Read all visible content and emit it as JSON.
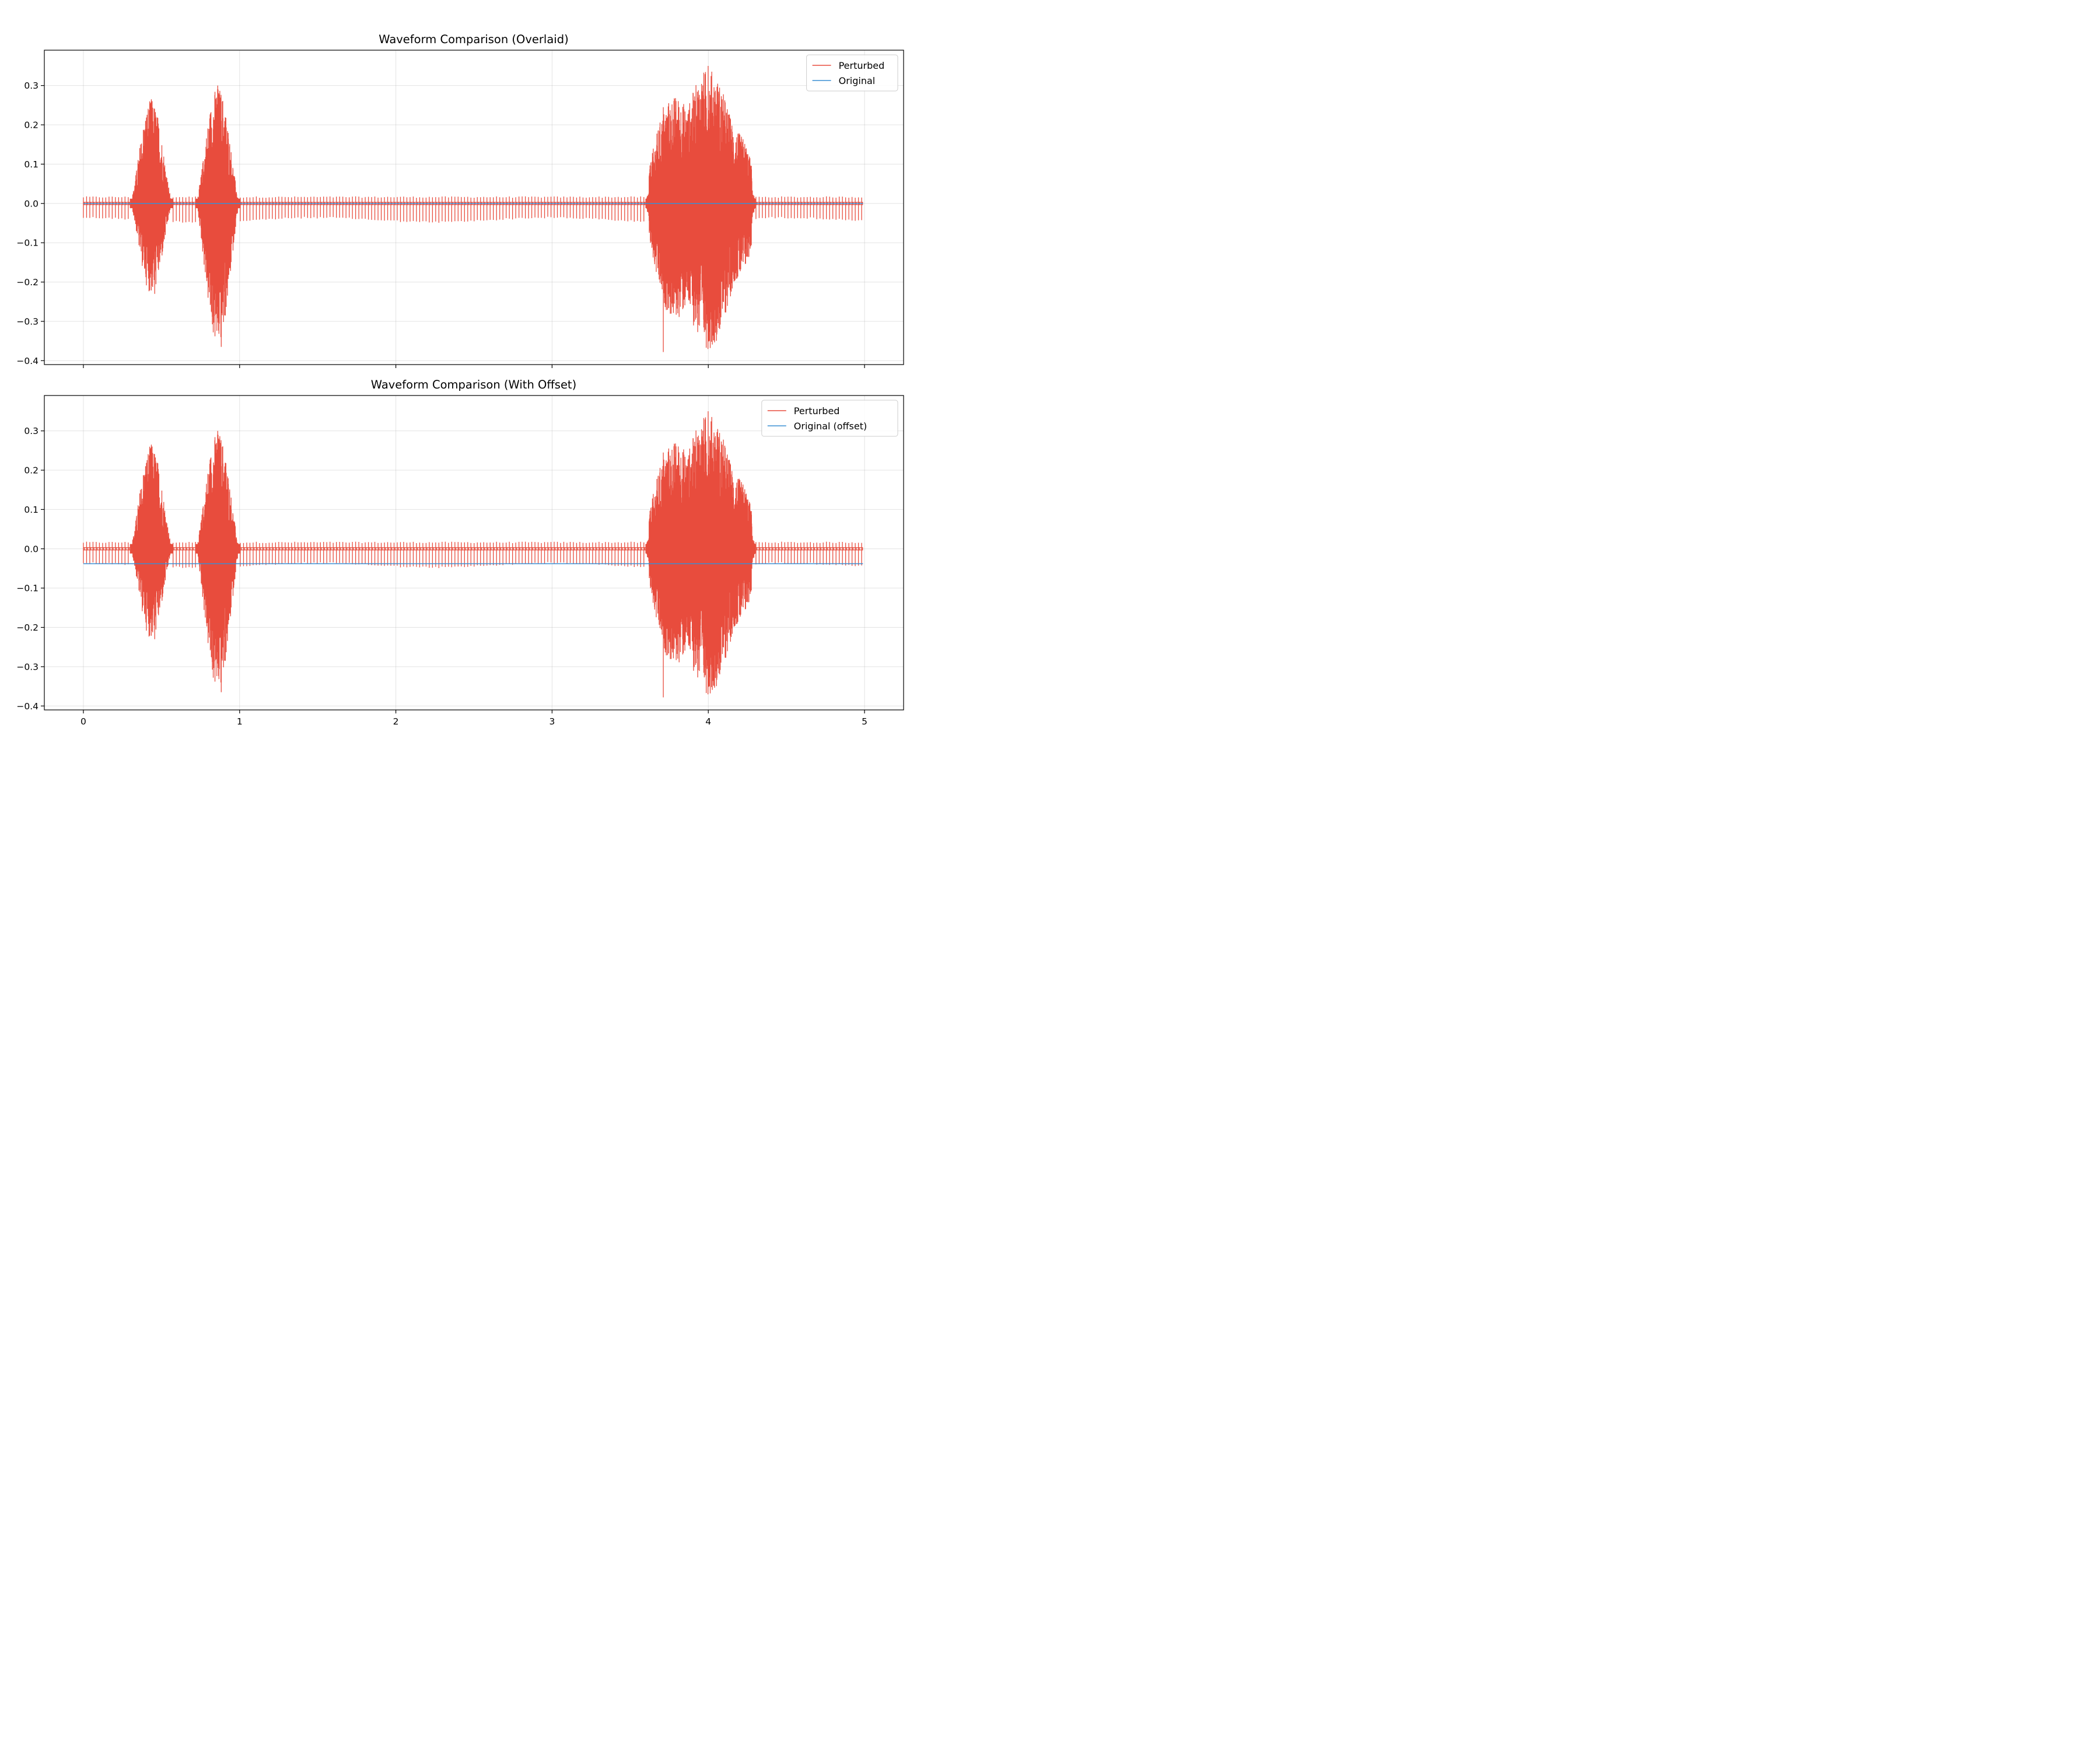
{
  "colors": {
    "perturbed": "#e84c3d",
    "original": "#3a8fd4"
  },
  "chart_data": [
    {
      "type": "line",
      "title": "Waveform Comparison (Overlaid)",
      "xlim": [
        -0.25,
        5.25
      ],
      "ylim": [
        -0.41,
        0.39
      ],
      "x_ticks": [
        0,
        1,
        2,
        3,
        4,
        5
      ],
      "x_tick_labels": [
        "",
        "",
        "",
        "",
        "",
        ""
      ],
      "y_ticks": [
        0.3,
        0.2,
        0.1,
        0.0,
        -0.1,
        -0.2,
        -0.3,
        -0.4
      ],
      "y_tick_labels": [
        "0.3",
        "0.2",
        "0.1",
        "0.0",
        "−0.1",
        "−0.2",
        "−0.3",
        "−0.4"
      ],
      "grid": true,
      "legend_position": "top-right",
      "series": [
        {
          "name": "Perturbed",
          "color": "#e84c3d",
          "x_range": [
            0,
            4.99
          ],
          "baseline_pulse_min": -0.045,
          "baseline_pulse_max": 0.018,
          "bursts": [
            {
              "start": 0.3,
              "end": 0.57,
              "peak_max": 0.265,
              "peak_min": -0.23
            },
            {
              "start": 0.72,
              "end": 1.0,
              "peak_max": 0.3,
              "peak_min": -0.365
            },
            {
              "start": 3.6,
              "end": 4.3,
              "peak_max": 0.35,
              "peak_min": -0.378
            }
          ]
        },
        {
          "name": "Original",
          "color": "#3a8fd4",
          "x": [
            0,
            4.99
          ],
          "y": [
            0.0,
            0.0
          ]
        }
      ]
    },
    {
      "type": "line",
      "title": "Waveform Comparison (With Offset)",
      "xlim": [
        -0.25,
        5.25
      ],
      "ylim": [
        -0.41,
        0.39
      ],
      "x_ticks": [
        0,
        1,
        2,
        3,
        4,
        5
      ],
      "x_tick_labels": [
        "0",
        "1",
        "2",
        "3",
        "4",
        "5"
      ],
      "y_ticks": [
        0.3,
        0.2,
        0.1,
        0.0,
        -0.1,
        -0.2,
        -0.3,
        -0.4
      ],
      "y_tick_labels": [
        "0.3",
        "0.2",
        "0.1",
        "0.0",
        "−0.1",
        "−0.2",
        "−0.3",
        "−0.4"
      ],
      "grid": true,
      "legend_position": "top-right",
      "series": [
        {
          "name": "Perturbed",
          "color": "#e84c3d",
          "x_range": [
            0,
            4.99
          ],
          "baseline_pulse_min": -0.045,
          "baseline_pulse_max": 0.018,
          "bursts": [
            {
              "start": 0.3,
              "end": 0.57,
              "peak_max": 0.265,
              "peak_min": -0.23
            },
            {
              "start": 0.72,
              "end": 1.0,
              "peak_max": 0.3,
              "peak_min": -0.365
            },
            {
              "start": 3.6,
              "end": 4.3,
              "peak_max": 0.35,
              "peak_min": -0.378
            }
          ]
        },
        {
          "name": "Original (offset)",
          "color": "#3a8fd4",
          "x": [
            0,
            4.99
          ],
          "y": [
            -0.038,
            -0.038
          ]
        }
      ]
    }
  ]
}
